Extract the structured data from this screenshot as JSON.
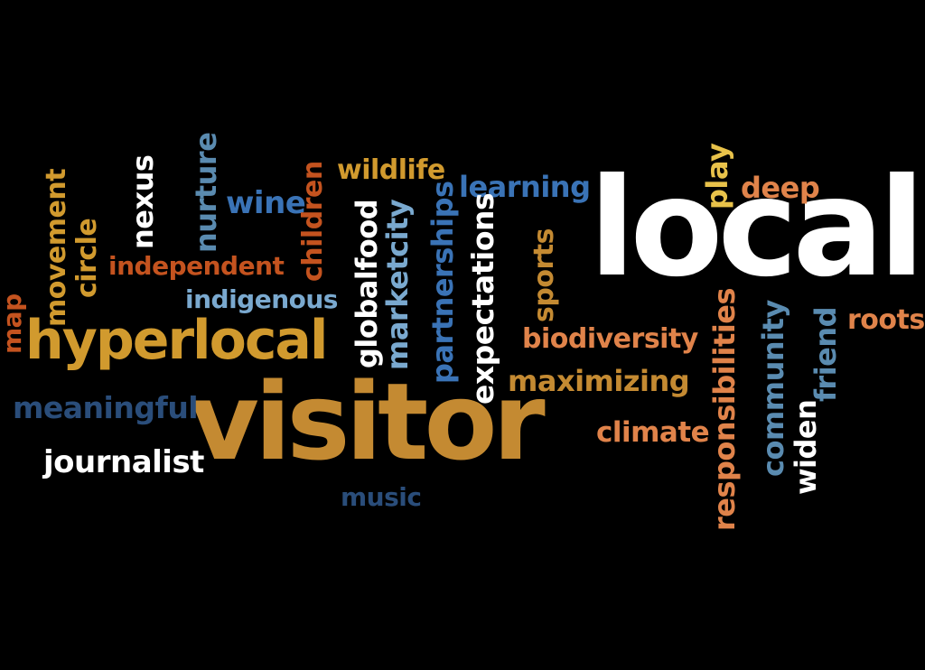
{
  "words": {
    "local": "local",
    "visitor": "visitor",
    "hyperlocal": "hyperlocal",
    "journalist": "journalist",
    "meaningful": "meaningful",
    "music": "music",
    "independent": "independent",
    "indigenous": "indigenous",
    "wine": "wine",
    "wildlife": "wildlife",
    "learning": "learning",
    "deep": "deep",
    "roots": "roots",
    "biodiversity": "biodiversity",
    "maximizing": "maximizing",
    "climate": "climate",
    "map": "map",
    "movement": "movement",
    "circle": "circle",
    "nexus": "nexus",
    "nurture": "nurture",
    "children": "children",
    "globalfood": "globalfood",
    "marketcity": "marketcity",
    "partnerships": "partnerships",
    "expectations": "expectations",
    "sports": "sports",
    "play": "play",
    "responsibilities": "responsibilities",
    "community": "community",
    "widen": "widen",
    "friend": "friend"
  },
  "colors": {
    "background": "#000000",
    "white": "#ffffff",
    "gold": "#d19a2e",
    "orange": "#e0834a",
    "rust": "#c4531f",
    "blue": "#3a73b6",
    "sky": "#7aa9cf",
    "navy": "#2a4d7a",
    "yellow": "#e8c24a"
  }
}
